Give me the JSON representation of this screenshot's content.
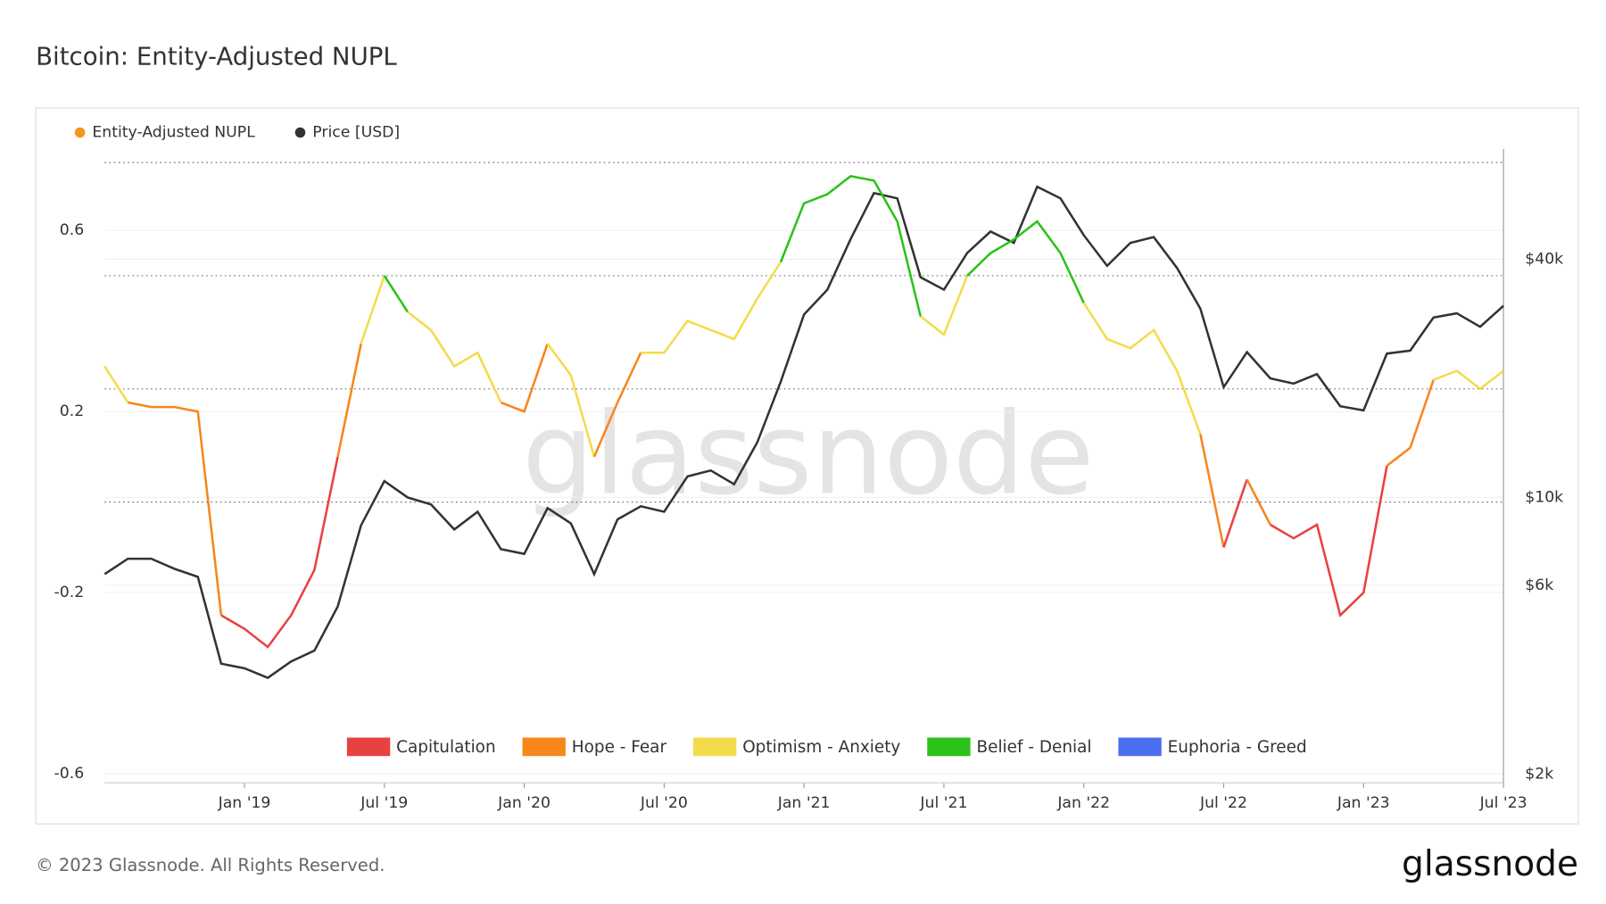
{
  "chart_data": {
    "type": "line",
    "title": "Bitcoin: Entity-Adjusted NUPL",
    "watermark": "glassnode",
    "footer": "© 2023 Glassnode. All Rights Reserved.",
    "logo": "glassnode",
    "x": [
      "2018-07",
      "2018-08",
      "2018-09",
      "2018-10",
      "2018-11",
      "2018-12",
      "2019-01",
      "2019-02",
      "2019-03",
      "2019-04",
      "2019-05",
      "2019-06",
      "2019-07",
      "2019-08",
      "2019-09",
      "2019-10",
      "2019-11",
      "2019-12",
      "2020-01",
      "2020-02",
      "2020-03",
      "2020-04",
      "2020-05",
      "2020-06",
      "2020-07",
      "2020-08",
      "2020-09",
      "2020-10",
      "2020-11",
      "2020-12",
      "2021-01",
      "2021-02",
      "2021-03",
      "2021-04",
      "2021-05",
      "2021-06",
      "2021-07",
      "2021-08",
      "2021-09",
      "2021-10",
      "2021-11",
      "2021-12",
      "2022-01",
      "2022-02",
      "2022-03",
      "2022-04",
      "2022-05",
      "2022-06",
      "2022-07",
      "2022-08",
      "2022-09",
      "2022-10",
      "2022-11",
      "2022-12",
      "2023-01",
      "2023-02",
      "2023-03",
      "2023-04",
      "2023-05",
      "2023-06",
      "2023-07"
    ],
    "series": [
      {
        "name": "Entity-Adjusted NUPL",
        "color": "#f7931a",
        "axis": "y",
        "zoned": true,
        "values": [
          0.3,
          0.22,
          0.21,
          0.21,
          0.2,
          -0.25,
          -0.28,
          -0.32,
          -0.25,
          -0.15,
          0.1,
          0.35,
          0.5,
          0.42,
          0.38,
          0.3,
          0.33,
          0.22,
          0.2,
          0.35,
          0.28,
          0.1,
          0.22,
          0.33,
          0.33,
          0.4,
          0.38,
          0.36,
          0.45,
          0.53,
          0.66,
          0.68,
          0.72,
          0.71,
          0.62,
          0.41,
          0.37,
          0.5,
          0.55,
          0.58,
          0.62,
          0.55,
          0.44,
          0.36,
          0.34,
          0.38,
          0.29,
          0.15,
          -0.1,
          0.05,
          -0.05,
          -0.08,
          -0.05,
          -0.25,
          -0.2,
          0.08,
          0.12,
          0.27,
          0.29,
          0.25,
          0.29
        ]
      },
      {
        "name": "Price [USD]",
        "color": "#333333",
        "axis": "y2",
        "values": [
          6400,
          7000,
          7000,
          6600,
          6300,
          3800,
          3700,
          3500,
          3850,
          4100,
          5300,
          8500,
          11000,
          10000,
          9600,
          8300,
          9200,
          7400,
          7200,
          9400,
          8600,
          6400,
          8800,
          9500,
          9200,
          11300,
          11700,
          10800,
          13800,
          19600,
          29000,
          33500,
          45000,
          58800,
          57000,
          36000,
          33500,
          41500,
          47000,
          44000,
          61000,
          57000,
          46000,
          38500,
          44000,
          45500,
          38000,
          30000,
          19000,
          23300,
          20000,
          19400,
          20500,
          17000,
          16600,
          23100,
          23500,
          28500,
          29200,
          27000,
          30500
        ]
      }
    ],
    "zones": [
      {
        "name": "Capitulation",
        "color": "#e84142"
      },
      {
        "name": "Hope - Fear",
        "color": "#f7861b"
      },
      {
        "name": "Optimism - Anxiety",
        "color": "#f2dc4b"
      },
      {
        "name": "Belief - Denial",
        "color": "#2bc219"
      },
      {
        "name": "Euphoria - Greed",
        "color": "#4a6ff0"
      }
    ],
    "zone_bounds": [
      0,
      0.25,
      0.5,
      0.75
    ],
    "xlim": [
      "2018-07",
      "2023-07"
    ],
    "xticks": [
      {
        "value": "2019-01",
        "label": "Jan '19"
      },
      {
        "value": "2019-07",
        "label": "Jul '19"
      },
      {
        "value": "2020-01",
        "label": "Jan '20"
      },
      {
        "value": "2020-07",
        "label": "Jul '20"
      },
      {
        "value": "2021-01",
        "label": "Jan '21"
      },
      {
        "value": "2021-07",
        "label": "Jul '21"
      },
      {
        "value": "2022-01",
        "label": "Jan '22"
      },
      {
        "value": "2022-07",
        "label": "Jul '22"
      },
      {
        "value": "2023-01",
        "label": "Jan '23"
      },
      {
        "value": "2023-07",
        "label": "Jul '23"
      }
    ],
    "ylim": [
      -0.62,
      0.78
    ],
    "yticks": [
      -0.6,
      -0.2,
      0.2,
      0.6
    ],
    "y2lim": [
      1900,
      76000
    ],
    "y2ticks": [
      {
        "value": 2000,
        "label": "$2k"
      },
      {
        "value": 6000,
        "label": "$6k"
      },
      {
        "value": 10000,
        "label": "$10k"
      },
      {
        "value": 40000,
        "label": "$40k"
      }
    ],
    "y2log": true,
    "grid": true
  }
}
